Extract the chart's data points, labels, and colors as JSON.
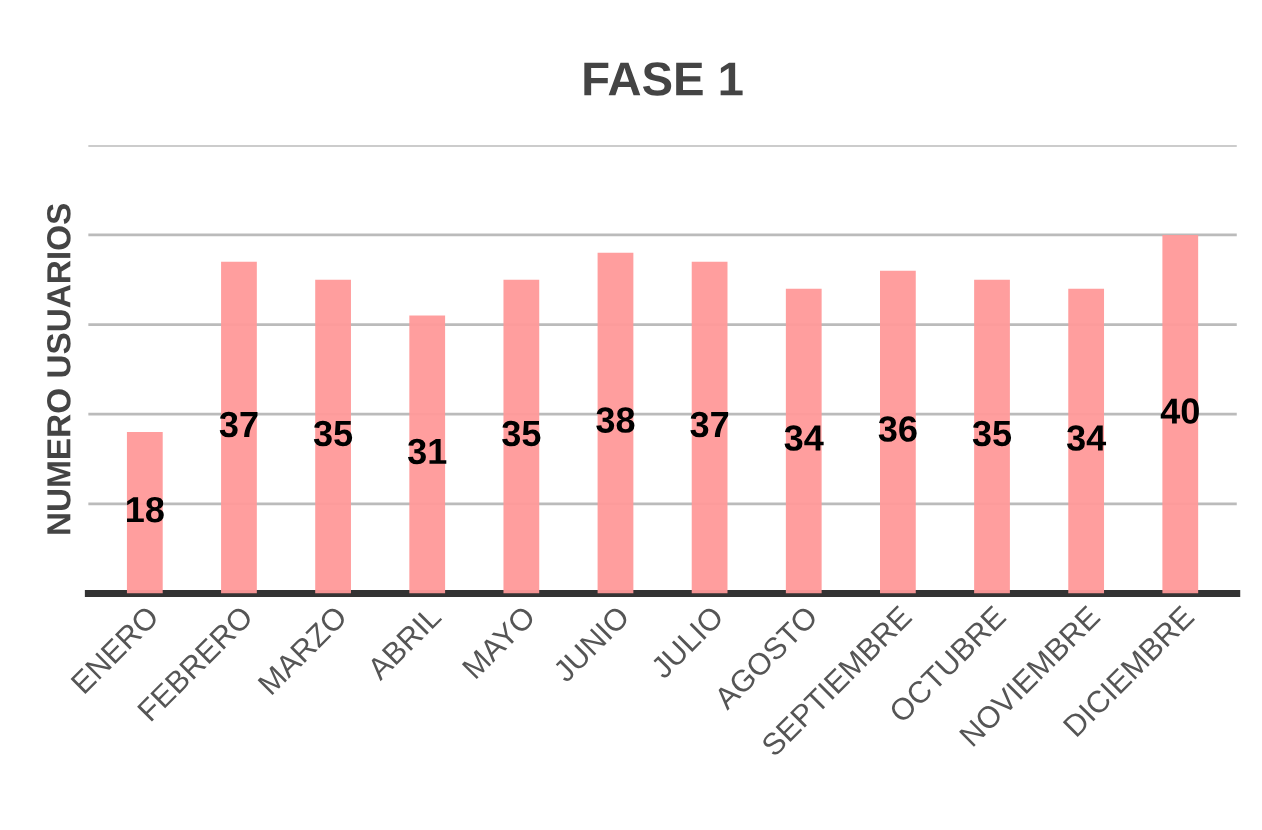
{
  "chart_data": {
    "type": "bar",
    "title": "FASE 1",
    "ylabel": "NUMERO USUARIOS",
    "categories": [
      "ENERO",
      "FEBRERO",
      "MARZO",
      "ABRIL",
      "MAYO",
      "JUNIO",
      "JULIO",
      "AGOSTO",
      "SEPTIEMBRE",
      "OCTUBRE",
      "NOVIEMBRE",
      "DICIEMBRE"
    ],
    "values": [
      18,
      37,
      35,
      31,
      35,
      38,
      37,
      34,
      36,
      35,
      34,
      40
    ],
    "color": "#ff9999",
    "ylim": [
      0,
      50
    ],
    "yticks": [
      {
        "value": 0,
        "label": null
      },
      {
        "value": 10,
        "label": null
      },
      {
        "value": 20,
        "label": null
      },
      {
        "value": 30,
        "label": null
      },
      {
        "value": 40,
        "label": null
      },
      {
        "value": 50,
        "label": null
      }
    ],
    "grid": "y",
    "data_labels": true,
    "tick_labels": "x"
  }
}
